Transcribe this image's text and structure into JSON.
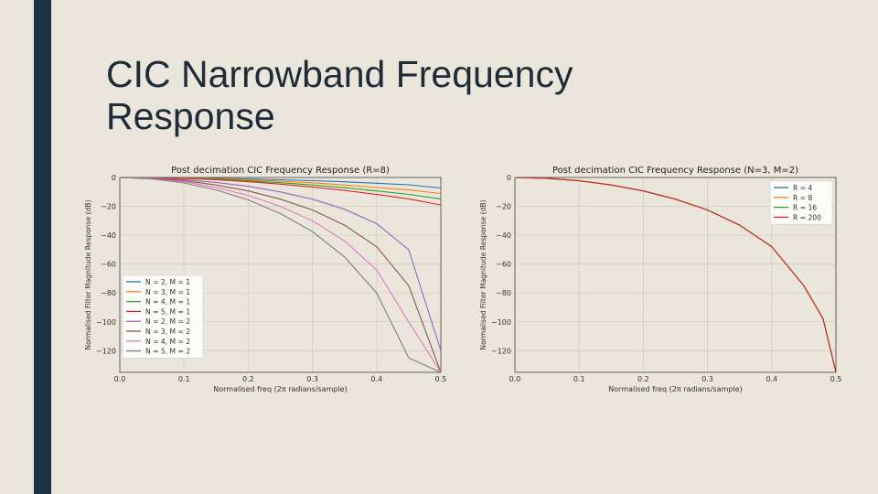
{
  "slide": {
    "title_line1": "CIC Narrowband Frequency",
    "title_line2": "Response"
  },
  "chart_data": [
    {
      "type": "line",
      "title": "Post decimation CIC Frequency Response (R=8)",
      "xlabel": "Normalised freq (2π radians/sample)",
      "ylabel": "Normalised Filter Magnitude Response (dB)",
      "xlim": [
        0,
        0.5
      ],
      "ylim": [
        -135,
        0
      ],
      "xticks": [
        0.0,
        0.1,
        0.2,
        0.3,
        0.4,
        0.5
      ],
      "xtick_labels": [
        "0.0",
        "0.1",
        "0.2",
        "0.3",
        "0.4",
        "0.5"
      ],
      "yticks": [
        0,
        -20,
        -40,
        -60,
        -80,
        -100,
        -120
      ],
      "ytick_labels": [
        "0",
        "−20",
        "−40",
        "−60",
        "−80",
        "−100",
        "−120"
      ],
      "grid": true,
      "legend_position": "lower-left",
      "x": [
        0.0,
        0.05,
        0.1,
        0.15,
        0.2,
        0.25,
        0.3,
        0.35,
        0.4,
        0.45,
        0.5
      ],
      "series": [
        {
          "name": "N = 2, M = 1",
          "color": "#1f77b4",
          "values": [
            0,
            -0.1,
            -0.3,
            -0.6,
            -1.1,
            -1.6,
            -2.2,
            -3.0,
            -4.0,
            -5.1,
            -7.3
          ]
        },
        {
          "name": "N = 3, M = 1",
          "color": "#ff7f0e",
          "values": [
            0,
            -0.1,
            -0.4,
            -0.9,
            -1.6,
            -2.6,
            -3.7,
            -5.2,
            -7.0,
            -8.6,
            -11.1
          ]
        },
        {
          "name": "N = 4, M = 1",
          "color": "#2ca02c",
          "values": [
            0,
            -0.1,
            -0.5,
            -1.3,
            -2.3,
            -3.6,
            -5.2,
            -7.1,
            -9.3,
            -11.7,
            -14.8
          ]
        },
        {
          "name": "N = 5, M = 1",
          "color": "#d62728",
          "values": [
            0,
            -0.2,
            -0.7,
            -1.6,
            -2.9,
            -4.6,
            -6.6,
            -9.0,
            -11.8,
            -14.8,
            -19.0
          ]
        },
        {
          "name": "N = 2, M = 2",
          "color": "#9467bd",
          "values": [
            0,
            -0.4,
            -1.5,
            -3.4,
            -6.1,
            -10.0,
            -15.0,
            -22.0,
            -32.0,
            -50.0,
            -120.0
          ]
        },
        {
          "name": "N = 3, M = 2",
          "color": "#8c564b",
          "values": [
            0,
            -0.6,
            -2.3,
            -5.2,
            -9.3,
            -15.0,
            -22.5,
            -33.0,
            -48.0,
            -75.0,
            -135.0
          ]
        },
        {
          "name": "N = 4, M = 2",
          "color": "#e377c2",
          "values": [
            0,
            -0.8,
            -3.0,
            -6.9,
            -12.4,
            -20.0,
            -30.0,
            -44.0,
            -64.0,
            -100.0,
            -135.0
          ]
        },
        {
          "name": "N = 5, M = 2",
          "color": "#7f7f7f",
          "values": [
            0,
            -1.0,
            -3.8,
            -8.6,
            -15.5,
            -25.0,
            -37.5,
            -55.0,
            -80.0,
            -125.0,
            -135.0
          ]
        }
      ]
    },
    {
      "type": "line",
      "title": "Post decimation CIC Frequency Response (N=3, M=2)",
      "xlabel": "Normalised freq (2π radians/sample)",
      "ylabel": "Normalised Filter Magnitude Response (dB)",
      "xlim": [
        0,
        0.5
      ],
      "ylim": [
        -135,
        0
      ],
      "xticks": [
        0.0,
        0.1,
        0.2,
        0.3,
        0.4,
        0.5
      ],
      "xtick_labels": [
        "0.0",
        "0.1",
        "0.2",
        "0.3",
        "0.4",
        "0.5"
      ],
      "yticks": [
        0,
        -20,
        -40,
        -60,
        -80,
        -100,
        -120
      ],
      "ytick_labels": [
        "0",
        "−20",
        "−40",
        "−60",
        "−80",
        "−100",
        "−120"
      ],
      "grid": true,
      "legend_position": "top-right",
      "x": [
        0.0,
        0.05,
        0.1,
        0.15,
        0.2,
        0.25,
        0.3,
        0.35,
        0.4,
        0.45,
        0.48,
        0.5
      ],
      "series": [
        {
          "name": "R = 4",
          "color": "#1f77b4",
          "values": [
            0,
            -0.6,
            -2.3,
            -5.2,
            -9.3,
            -15.0,
            -22.5,
            -33.0,
            -48.0,
            -75.0,
            -98.0,
            -135.0
          ]
        },
        {
          "name": "R = 8",
          "color": "#ff7f0e",
          "values": [
            0,
            -0.6,
            -2.3,
            -5.2,
            -9.3,
            -15.0,
            -22.5,
            -33.0,
            -48.0,
            -75.0,
            -98.0,
            -135.0
          ]
        },
        {
          "name": "R = 16",
          "color": "#2ca02c",
          "values": [
            0,
            -0.6,
            -2.3,
            -5.2,
            -9.3,
            -15.0,
            -22.5,
            -33.0,
            -48.0,
            -75.0,
            -98.0,
            -135.0
          ]
        },
        {
          "name": "R = 200",
          "color": "#d62728",
          "values": [
            0,
            -0.6,
            -2.3,
            -5.2,
            -9.3,
            -15.0,
            -22.5,
            -33.0,
            -48.0,
            -75.0,
            -98.0,
            -135.0
          ]
        }
      ]
    }
  ]
}
